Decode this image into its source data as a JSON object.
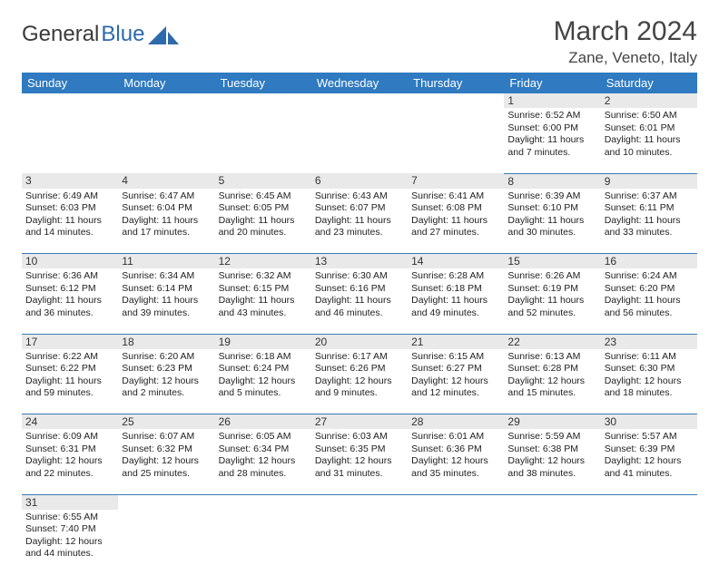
{
  "brand": {
    "part1": "General",
    "part2": "Blue"
  },
  "title": "March 2024",
  "location": "Zane, Veneto, Italy",
  "colors": {
    "header_bg": "#2f7ac0",
    "header_text": "#ffffff",
    "daynum_bg": "#e9e9e9",
    "row_divider": "#3a7ab8",
    "brand_gray": "#3a3a3a",
    "brand_blue": "#2f6aaa"
  },
  "day_headers": [
    "Sunday",
    "Monday",
    "Tuesday",
    "Wednesday",
    "Thursday",
    "Friday",
    "Saturday"
  ],
  "weeks": [
    {
      "nums": [
        "",
        "",
        "",
        "",
        "",
        "1",
        "2"
      ],
      "cells": [
        null,
        null,
        null,
        null,
        null,
        {
          "sunrise": "Sunrise: 6:52 AM",
          "sunset": "Sunset: 6:00 PM",
          "daylight": "Daylight: 11 hours and 7 minutes."
        },
        {
          "sunrise": "Sunrise: 6:50 AM",
          "sunset": "Sunset: 6:01 PM",
          "daylight": "Daylight: 11 hours and 10 minutes."
        }
      ]
    },
    {
      "nums": [
        "3",
        "4",
        "5",
        "6",
        "7",
        "8",
        "9"
      ],
      "cells": [
        {
          "sunrise": "Sunrise: 6:49 AM",
          "sunset": "Sunset: 6:03 PM",
          "daylight": "Daylight: 11 hours and 14 minutes."
        },
        {
          "sunrise": "Sunrise: 6:47 AM",
          "sunset": "Sunset: 6:04 PM",
          "daylight": "Daylight: 11 hours and 17 minutes."
        },
        {
          "sunrise": "Sunrise: 6:45 AM",
          "sunset": "Sunset: 6:05 PM",
          "daylight": "Daylight: 11 hours and 20 minutes."
        },
        {
          "sunrise": "Sunrise: 6:43 AM",
          "sunset": "Sunset: 6:07 PM",
          "daylight": "Daylight: 11 hours and 23 minutes."
        },
        {
          "sunrise": "Sunrise: 6:41 AM",
          "sunset": "Sunset: 6:08 PM",
          "daylight": "Daylight: 11 hours and 27 minutes."
        },
        {
          "sunrise": "Sunrise: 6:39 AM",
          "sunset": "Sunset: 6:10 PM",
          "daylight": "Daylight: 11 hours and 30 minutes."
        },
        {
          "sunrise": "Sunrise: 6:37 AM",
          "sunset": "Sunset: 6:11 PM",
          "daylight": "Daylight: 11 hours and 33 minutes."
        }
      ]
    },
    {
      "nums": [
        "10",
        "11",
        "12",
        "13",
        "14",
        "15",
        "16"
      ],
      "cells": [
        {
          "sunrise": "Sunrise: 6:36 AM",
          "sunset": "Sunset: 6:12 PM",
          "daylight": "Daylight: 11 hours and 36 minutes."
        },
        {
          "sunrise": "Sunrise: 6:34 AM",
          "sunset": "Sunset: 6:14 PM",
          "daylight": "Daylight: 11 hours and 39 minutes."
        },
        {
          "sunrise": "Sunrise: 6:32 AM",
          "sunset": "Sunset: 6:15 PM",
          "daylight": "Daylight: 11 hours and 43 minutes."
        },
        {
          "sunrise": "Sunrise: 6:30 AM",
          "sunset": "Sunset: 6:16 PM",
          "daylight": "Daylight: 11 hours and 46 minutes."
        },
        {
          "sunrise": "Sunrise: 6:28 AM",
          "sunset": "Sunset: 6:18 PM",
          "daylight": "Daylight: 11 hours and 49 minutes."
        },
        {
          "sunrise": "Sunrise: 6:26 AM",
          "sunset": "Sunset: 6:19 PM",
          "daylight": "Daylight: 11 hours and 52 minutes."
        },
        {
          "sunrise": "Sunrise: 6:24 AM",
          "sunset": "Sunset: 6:20 PM",
          "daylight": "Daylight: 11 hours and 56 minutes."
        }
      ]
    },
    {
      "nums": [
        "17",
        "18",
        "19",
        "20",
        "21",
        "22",
        "23"
      ],
      "cells": [
        {
          "sunrise": "Sunrise: 6:22 AM",
          "sunset": "Sunset: 6:22 PM",
          "daylight": "Daylight: 11 hours and 59 minutes."
        },
        {
          "sunrise": "Sunrise: 6:20 AM",
          "sunset": "Sunset: 6:23 PM",
          "daylight": "Daylight: 12 hours and 2 minutes."
        },
        {
          "sunrise": "Sunrise: 6:18 AM",
          "sunset": "Sunset: 6:24 PM",
          "daylight": "Daylight: 12 hours and 5 minutes."
        },
        {
          "sunrise": "Sunrise: 6:17 AM",
          "sunset": "Sunset: 6:26 PM",
          "daylight": "Daylight: 12 hours and 9 minutes."
        },
        {
          "sunrise": "Sunrise: 6:15 AM",
          "sunset": "Sunset: 6:27 PM",
          "daylight": "Daylight: 12 hours and 12 minutes."
        },
        {
          "sunrise": "Sunrise: 6:13 AM",
          "sunset": "Sunset: 6:28 PM",
          "daylight": "Daylight: 12 hours and 15 minutes."
        },
        {
          "sunrise": "Sunrise: 6:11 AM",
          "sunset": "Sunset: 6:30 PM",
          "daylight": "Daylight: 12 hours and 18 minutes."
        }
      ]
    },
    {
      "nums": [
        "24",
        "25",
        "26",
        "27",
        "28",
        "29",
        "30"
      ],
      "cells": [
        {
          "sunrise": "Sunrise: 6:09 AM",
          "sunset": "Sunset: 6:31 PM",
          "daylight": "Daylight: 12 hours and 22 minutes."
        },
        {
          "sunrise": "Sunrise: 6:07 AM",
          "sunset": "Sunset: 6:32 PM",
          "daylight": "Daylight: 12 hours and 25 minutes."
        },
        {
          "sunrise": "Sunrise: 6:05 AM",
          "sunset": "Sunset: 6:34 PM",
          "daylight": "Daylight: 12 hours and 28 minutes."
        },
        {
          "sunrise": "Sunrise: 6:03 AM",
          "sunset": "Sunset: 6:35 PM",
          "daylight": "Daylight: 12 hours and 31 minutes."
        },
        {
          "sunrise": "Sunrise: 6:01 AM",
          "sunset": "Sunset: 6:36 PM",
          "daylight": "Daylight: 12 hours and 35 minutes."
        },
        {
          "sunrise": "Sunrise: 5:59 AM",
          "sunset": "Sunset: 6:38 PM",
          "daylight": "Daylight: 12 hours and 38 minutes."
        },
        {
          "sunrise": "Sunrise: 5:57 AM",
          "sunset": "Sunset: 6:39 PM",
          "daylight": "Daylight: 12 hours and 41 minutes."
        }
      ]
    },
    {
      "nums": [
        "31",
        "",
        "",
        "",
        "",
        "",
        ""
      ],
      "cells": [
        {
          "sunrise": "Sunrise: 6:55 AM",
          "sunset": "Sunset: 7:40 PM",
          "daylight": "Daylight: 12 hours and 44 minutes."
        },
        null,
        null,
        null,
        null,
        null,
        null
      ]
    }
  ]
}
